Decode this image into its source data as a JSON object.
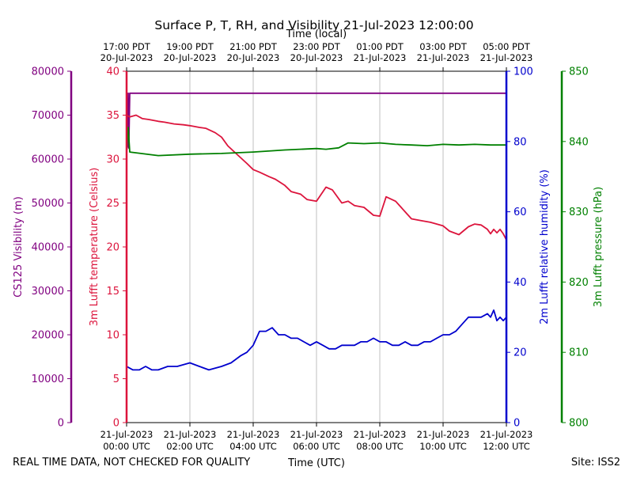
{
  "chart_data": {
    "type": "line",
    "title": "Surface P, T, RH, and Visibility 21-Jul-2023 12:00:00",
    "top_axis": {
      "label": "Time (local)",
      "ticks": [
        {
          "t": -3,
          "line1": "17:00 PDT",
          "line2": "20-Jul-2023"
        },
        {
          "t": -1,
          "line1": "19:00 PDT",
          "line2": "20-Jul-2023"
        },
        {
          "t": 1,
          "line1": "21:00 PDT",
          "line2": "20-Jul-2023"
        },
        {
          "t": 3,
          "line1": "23:00 PDT",
          "line2": "20-Jul-2023"
        },
        {
          "t": 5,
          "line1": "01:00 PDT",
          "line2": "21-Jul-2023"
        },
        {
          "t": 7,
          "line1": "03:00 PDT",
          "line2": "21-Jul-2023"
        },
        {
          "t": 9,
          "line1": "05:00 PDT",
          "line2": "21-Jul-2023"
        }
      ]
    },
    "bottom_axis": {
      "label": "Time (UTC)",
      "ticks": [
        {
          "t": 0,
          "line1": "21-Jul-2023",
          "line2": "00:00 UTC"
        },
        {
          "t": 2,
          "line1": "21-Jul-2023",
          "line2": "02:00 UTC"
        },
        {
          "t": 4,
          "line1": "21-Jul-2023",
          "line2": "04:00 UTC"
        },
        {
          "t": 6,
          "line1": "21-Jul-2023",
          "line2": "06:00 UTC"
        },
        {
          "t": 8,
          "line1": "21-Jul-2023",
          "line2": "08:00 UTC"
        },
        {
          "t": 10,
          "line1": "21-Jul-2023",
          "line2": "10:00 UTC"
        },
        {
          "t": 12,
          "line1": "21-Jul-2023",
          "line2": "12:00 UTC"
        }
      ]
    },
    "axes": [
      {
        "id": "visibility",
        "label": "CS125 Visibility (m)",
        "color": "#800080",
        "min": 0,
        "max": 80000,
        "ticks": [
          0,
          10000,
          20000,
          30000,
          40000,
          50000,
          60000,
          70000,
          80000
        ]
      },
      {
        "id": "temperature",
        "label": "3m Lufft temperature (Celsius)",
        "color": "#dc143c",
        "min": 0,
        "max": 40,
        "ticks": [
          0,
          5,
          10,
          15,
          20,
          25,
          30,
          35,
          40
        ]
      },
      {
        "id": "rh",
        "label": "2m Lufft relative humidity (%)",
        "color": "#0000cd",
        "min": 0,
        "max": 100,
        "ticks": [
          0,
          20,
          40,
          60,
          80,
          100
        ]
      },
      {
        "id": "pressure",
        "label": "3m Lufft pressure (hPa)",
        "color": "#008000",
        "min": 800,
        "max": 850,
        "ticks": [
          800,
          810,
          820,
          830,
          840,
          850
        ]
      }
    ],
    "series": [
      {
        "axis": "visibility",
        "color": "#800080",
        "x": [
          0,
          0.03,
          0.05,
          0.07,
          0.1,
          12
        ],
        "y": [
          62000,
          63000,
          75000,
          62500,
          75000,
          75000
        ]
      },
      {
        "axis": "temperature",
        "color": "#dc143c",
        "x": [
          0,
          0.1,
          0.3,
          0.5,
          0.7,
          1.0,
          1.2,
          1.5,
          1.8,
          2.0,
          2.3,
          2.5,
          2.8,
          3.0,
          3.2,
          3.5,
          3.8,
          4.0,
          4.2,
          4.5,
          4.7,
          5.0,
          5.2,
          5.5,
          5.7,
          6.0,
          6.3,
          6.5,
          6.8,
          7.0,
          7.2,
          7.5,
          7.8,
          8.0,
          8.2,
          8.5,
          8.8,
          9.0,
          9.3,
          9.6,
          9.8,
          10.0,
          10.2,
          10.5,
          10.8,
          11.0,
          11.2,
          11.4,
          11.5,
          11.6,
          11.7,
          11.8,
          11.9,
          12.0
        ],
        "y": [
          35.0,
          34.8,
          35.0,
          34.6,
          34.5,
          34.3,
          34.2,
          34.0,
          33.9,
          33.8,
          33.6,
          33.5,
          33.0,
          32.5,
          31.5,
          30.5,
          29.5,
          28.8,
          28.5,
          28.0,
          27.7,
          27.0,
          26.3,
          26.0,
          25.4,
          25.2,
          26.8,
          26.5,
          25.0,
          25.2,
          24.7,
          24.5,
          23.6,
          23.5,
          25.7,
          25.2,
          24.0,
          23.2,
          23.0,
          22.8,
          22.6,
          22.4,
          21.8,
          21.4,
          22.3,
          22.6,
          22.5,
          22.0,
          21.5,
          22.0,
          21.6,
          22.0,
          21.5,
          20.8
        ]
      },
      {
        "axis": "rh",
        "color": "#0000cd",
        "x": [
          0,
          0.2,
          0.4,
          0.6,
          0.8,
          1.0,
          1.3,
          1.6,
          2.0,
          2.3,
          2.6,
          3.0,
          3.3,
          3.6,
          3.8,
          4.0,
          4.2,
          4.4,
          4.6,
          4.8,
          5.0,
          5.2,
          5.4,
          5.6,
          5.8,
          6.0,
          6.2,
          6.4,
          6.6,
          6.8,
          7.0,
          7.2,
          7.4,
          7.6,
          7.8,
          8.0,
          8.2,
          8.4,
          8.6,
          8.8,
          9.0,
          9.2,
          9.4,
          9.6,
          9.8,
          10.0,
          10.2,
          10.4,
          10.6,
          10.8,
          11.0,
          11.2,
          11.4,
          11.5,
          11.6,
          11.7,
          11.8,
          11.9,
          12.0
        ],
        "y": [
          16,
          15,
          15,
          16,
          15,
          15,
          16,
          16,
          17,
          16,
          15,
          16,
          17,
          19,
          20,
          22,
          26,
          26,
          27,
          25,
          25,
          24,
          24,
          23,
          22,
          23,
          22,
          21,
          21,
          22,
          22,
          22,
          23,
          23,
          24,
          23,
          23,
          22,
          22,
          23,
          22,
          22,
          23,
          23,
          24,
          25,
          25,
          26,
          28,
          30,
          30,
          30,
          31,
          30,
          32,
          29,
          30,
          29,
          30
        ]
      },
      {
        "axis": "pressure",
        "color": "#008000",
        "x": [
          0,
          0.05,
          0.1,
          1.0,
          2.0,
          3.0,
          4.0,
          5.0,
          6.0,
          6.3,
          6.7,
          7.0,
          7.5,
          8.0,
          8.5,
          9.0,
          9.5,
          10.0,
          10.5,
          11.0,
          11.5,
          12.0
        ],
        "y": [
          838.5,
          842.0,
          838.5,
          838.0,
          838.2,
          838.3,
          838.5,
          838.8,
          839.0,
          838.9,
          839.1,
          839.8,
          839.7,
          839.8,
          839.6,
          839.5,
          839.4,
          839.6,
          839.5,
          839.6,
          839.5,
          839.5
        ]
      }
    ],
    "grid": true
  },
  "footer": {
    "left": "REAL TIME DATA, NOT CHECKED FOR QUALITY",
    "right": "Site: ISS2"
  }
}
